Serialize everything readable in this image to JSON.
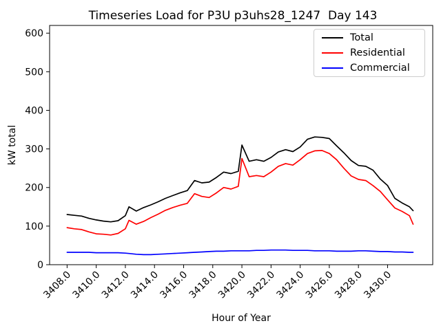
{
  "figure": {
    "title": "Timeseries Load for P3U p3uhs28_1247  Day 143",
    "xlabel": "Hour of Year",
    "ylabel": "kW total"
  },
  "legend": {
    "position": "upper right",
    "items": [
      {
        "label": "Total",
        "color": "#000000"
      },
      {
        "label": "Residential",
        "color": "#ff0000"
      },
      {
        "label": "Commercial",
        "color": "#0000ff"
      }
    ]
  },
  "chart_data": {
    "type": "line",
    "title": "Timeseries Load for P3U p3uhs28_1247  Day 143",
    "xlabel": "Hour of Year",
    "ylabel": "kW total",
    "grid": false,
    "legend_position": "upper right",
    "xlim": [
      3406.8,
      3433.1
    ],
    "ylim": [
      0,
      620
    ],
    "y_ticks": [
      0,
      100,
      200,
      300,
      400,
      500,
      600
    ],
    "x_tick_values": [
      3408,
      3410,
      3412,
      3414,
      3416,
      3418,
      3420,
      3422,
      3424,
      3426,
      3428,
      3430
    ],
    "x_tick_labels": [
      "3408.0",
      "3410.0",
      "3412.0",
      "3414.0",
      "3416.0",
      "3418.0",
      "3420.0",
      "3422.0",
      "3424.0",
      "3426.0",
      "3428.0",
      "3430.0"
    ],
    "x": [
      3408.0,
      3408.5,
      3409.0,
      3409.5,
      3410.0,
      3410.5,
      3411.0,
      3411.5,
      3412.0,
      3412.25,
      3412.75,
      3413.25,
      3413.75,
      3414.25,
      3414.75,
      3415.25,
      3415.75,
      3416.25,
      3416.75,
      3417.25,
      3417.75,
      3418.25,
      3418.75,
      3419.25,
      3419.75,
      3420.0,
      3420.5,
      3421.0,
      3421.5,
      3422.0,
      3422.5,
      3423.0,
      3423.5,
      3424.0,
      3424.5,
      3425.0,
      3425.5,
      3426.0,
      3426.5,
      3427.0,
      3427.5,
      3428.0,
      3428.5,
      3429.0,
      3429.5,
      3430.0,
      3430.5,
      3431.0,
      3431.5,
      3431.75
    ],
    "series": [
      {
        "name": "Total",
        "color": "#000000",
        "values": [
          130,
          128,
          126,
          120,
          116,
          113,
          111,
          114,
          127,
          150,
          139,
          148,
          155,
          163,
          172,
          179,
          186,
          192,
          218,
          212,
          214,
          226,
          240,
          236,
          242,
          310,
          268,
          272,
          268,
          278,
          292,
          298,
          293,
          305,
          325,
          331,
          330,
          327,
          308,
          290,
          270,
          257,
          255,
          245,
          222,
          205,
          172,
          160,
          150,
          140
        ]
      },
      {
        "name": "Residential",
        "color": "#ff0000",
        "values": [
          96,
          93,
          91,
          85,
          80,
          79,
          77,
          81,
          93,
          115,
          105,
          112,
          122,
          131,
          141,
          148,
          154,
          159,
          184,
          177,
          174,
          186,
          200,
          196,
          203,
          275,
          228,
          231,
          228,
          240,
          255,
          262,
          258,
          272,
          288,
          295,
          296,
          288,
          272,
          250,
          230,
          221,
          218,
          205,
          190,
          168,
          147,
          138,
          127,
          105
        ]
      },
      {
        "name": "Commercial",
        "color": "#0000ff",
        "values": [
          32,
          32,
          32,
          32,
          31,
          31,
          31,
          31,
          30,
          29,
          27,
          26,
          26,
          27,
          28,
          29,
          30,
          31,
          32,
          33,
          34,
          35,
          35,
          36,
          36,
          36,
          36,
          37,
          37,
          38,
          38,
          38,
          37,
          37,
          37,
          36,
          36,
          36,
          35,
          35,
          35,
          36,
          36,
          35,
          34,
          34,
          33,
          33,
          32,
          32
        ]
      }
    ]
  }
}
